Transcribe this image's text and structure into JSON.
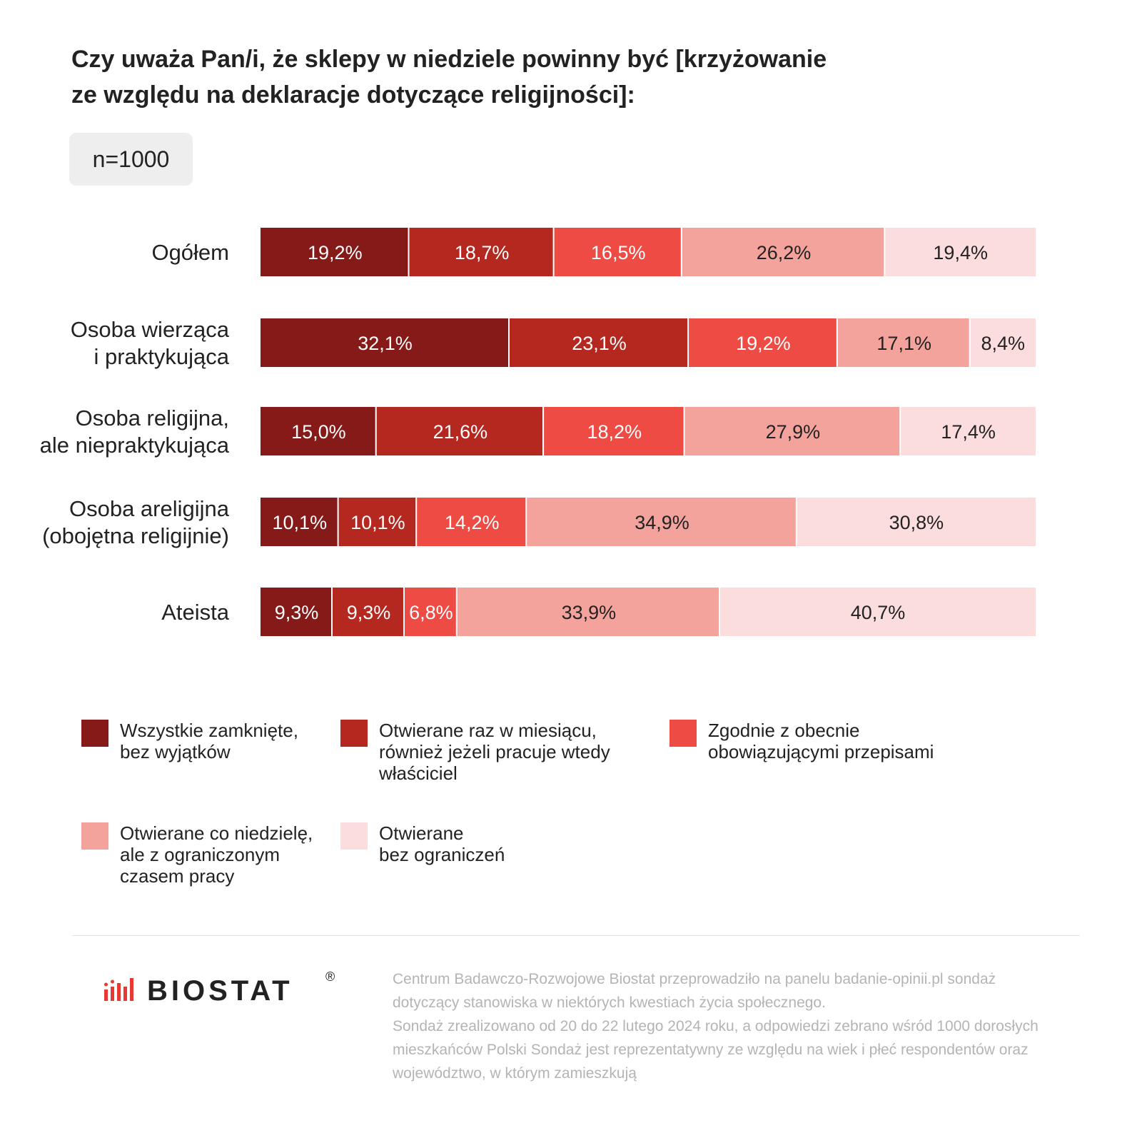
{
  "title": {
    "line1": "Czy uważa Pan/i, że sklepy w niedziele powinny być [krzyżowanie",
    "line2": "ze względu na deklaracje dotyczące religijności]:"
  },
  "sample_badge": "n=1000",
  "colors": {
    "series": [
      "#861a18",
      "#b42820",
      "#ee4b44",
      "#f4a29c",
      "#fadddc"
    ],
    "label_text": [
      "#ffffff",
      "#ffffff",
      "#ffffff",
      "#222222",
      "#222222"
    ]
  },
  "chart_data": {
    "type": "bar",
    "orientation": "horizontal",
    "stacked": true,
    "title": "Czy uważa Pan/i, że sklepy w niedziele powinny być [krzyżowanie ze względu na deklaracje dotyczące religijności]:",
    "categories": [
      "Ogółem",
      "Osoba wierząca\ni praktykująca",
      "Osoba religijna,\nale niepraktykująca",
      "Osoba areligijna\n(obojętna religijnie)",
      "Ateista"
    ],
    "series": [
      {
        "name": "Wszystkie zamknięte,\nbez wyjątków",
        "values": [
          19.2,
          32.1,
          15.0,
          10.1,
          9.3
        ],
        "labels": [
          "19,2%",
          "32,1%",
          "15,0%",
          "10,1%",
          "9,3%"
        ]
      },
      {
        "name": "Otwierane raz w miesiącu,\nrównież jeżeli pracuje wtedy\nwłaściciel",
        "values": [
          18.7,
          23.1,
          21.6,
          10.1,
          9.3
        ],
        "labels": [
          "18,7%",
          "23,1%",
          "21,6%",
          "10,1%",
          "9,3%"
        ]
      },
      {
        "name": "Zgodnie z obecnie\n obowiązującymi przepisami",
        "values": [
          16.5,
          19.2,
          18.2,
          14.2,
          6.8
        ],
        "labels": [
          "16,5%",
          "19,2%",
          "18,2%",
          "14,2%",
          "6,8%"
        ]
      },
      {
        "name": "Otwierane co niedzielę,\nale z ograniczonym\nczasem pracy",
        "values": [
          26.2,
          17.1,
          27.9,
          34.9,
          33.9
        ],
        "labels": [
          "26,2%",
          "17,1%",
          "27,9%",
          "34,9%",
          "33,9%"
        ]
      },
      {
        "name": "Otwierane\nbez ograniczeń",
        "values": [
          19.4,
          8.4,
          17.4,
          30.8,
          40.7
        ],
        "labels": [
          "19,4%",
          "8,4%",
          "17,4%",
          "30,8%",
          "40,7%"
        ]
      }
    ],
    "xlim": [
      0,
      100
    ],
    "grid": false,
    "legend_position": "bottom"
  },
  "logo": {
    "text": "BIOSTAT",
    "reg": "®"
  },
  "footnote": {
    "line1": "Centrum Badawczo-Rozwojowe Biostat przeprowadziło na panelu badanie-opinii.pl sondaż",
    "line2": "dotyczący stanowiska w niektórych kwestiach życia społecznego.",
    "line3": "Sondaż zrealizowano od 20 do 22 lutego 2024 roku, a odpowiedzi zebrano wśród 1000 dorosłych",
    "line4": "mieszkańców Polski Sondaż jest reprezentatywny ze względu na wiek i płeć respondentów oraz",
    "line5": "województwo, w którym zamieszkują"
  }
}
